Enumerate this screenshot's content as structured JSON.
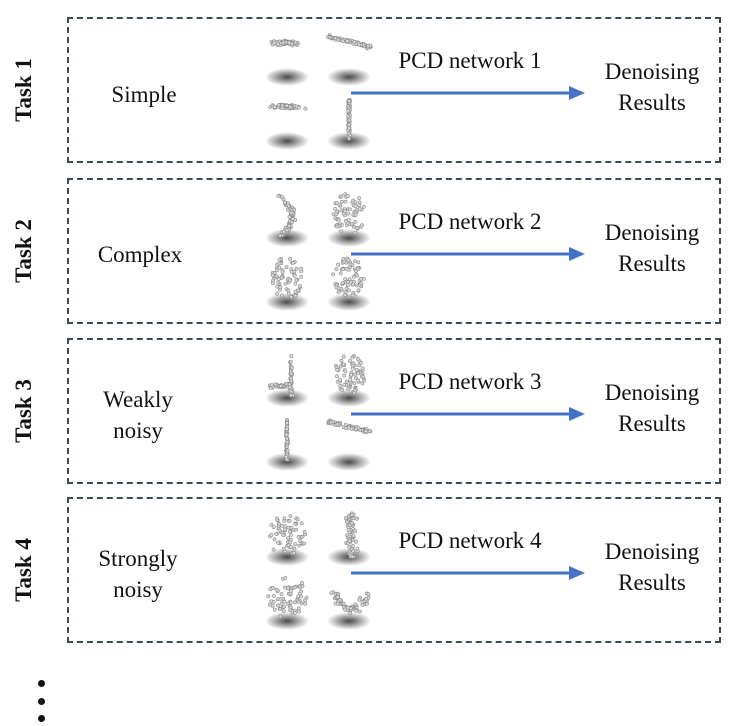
{
  "tasks": [
    {
      "task_label": "Task 1",
      "type_label": [
        "Simple"
      ],
      "network_label": "PCD network 1",
      "result_label": [
        "Denoising",
        "Results"
      ],
      "thumbnails": [
        "flat-disk-cloud",
        "tilted-plate-cloud",
        "flat-disk-cloud",
        "vertical-stick-cloud"
      ]
    },
    {
      "task_label": "Task 2",
      "type_label": [
        "Complex"
      ],
      "network_label": "PCD network 2",
      "result_label": [
        "Denoising",
        "Results"
      ],
      "thumbnails": [
        "curved-figure-cloud",
        "egg-shape-cloud",
        "egg-shape-cloud",
        "egg-shape-cloud"
      ]
    },
    {
      "task_label": "Task 3",
      "type_label": [
        "Weakly",
        "noisy"
      ],
      "network_label": "PCD network 3",
      "result_label": [
        "Denoising",
        "Results"
      ],
      "thumbnails": [
        "corner-shape-cloud",
        "egg-shape-cloud",
        "vertical-stick-cloud",
        "tilted-plate-cloud"
      ]
    },
    {
      "task_label": "Task 4",
      "type_label": [
        "Strongly",
        "noisy"
      ],
      "network_label": "PCD network 4",
      "result_label": [
        "Denoising",
        "Results"
      ],
      "thumbnails": [
        "noisy-blob-cloud",
        "noisy-column-cloud",
        "noisy-blob-cloud",
        "noisy-curved-cloud"
      ]
    }
  ],
  "colors": {
    "arrow": "#4472c4",
    "border": "#3b4a58",
    "points": "#d9d9d9",
    "point_outline": "#8a8a8a",
    "shadow": "#2a2a2a"
  },
  "more_indicator": "vertical-ellipsis-icon"
}
